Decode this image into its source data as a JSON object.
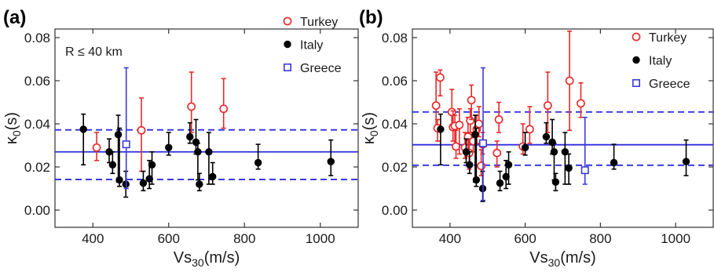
{
  "chart_data": [
    {
      "type": "scatter",
      "panel_label": "(a)",
      "annotation": "R ≤ 40 km",
      "xlabel_main": "Vs",
      "xlabel_sub": "30",
      "xlabel_unit": "(m/s)",
      "ylabel_main": "κ",
      "ylabel_sub": "0",
      "ylabel_unit": "(s)",
      "xlim": [
        300,
        1100
      ],
      "ylim": [
        -0.008,
        0.084
      ],
      "xticks": [
        400,
        600,
        800,
        1000
      ],
      "yticks": [
        "0.00",
        "0.02",
        "0.04",
        "0.06",
        "0.08"
      ],
      "ytick_values": [
        0.0,
        0.02,
        0.04,
        0.06,
        0.08
      ],
      "grid": false,
      "legend_position": "top-right",
      "mean_line": 0.027,
      "band": [
        0.0142,
        0.0372
      ],
      "series": [
        {
          "name": "Turkey",
          "color": "#e8292a",
          "marker": "open-circle",
          "points": [
            {
              "x": 410,
              "y": 0.029,
              "lo": 0.023,
              "hi": 0.036
            },
            {
              "x": 528,
              "y": 0.037,
              "lo": 0.018,
              "hi": 0.052
            },
            {
              "x": 660,
              "y": 0.048,
              "lo": 0.036,
              "hi": 0.064
            },
            {
              "x": 745,
              "y": 0.047,
              "lo": 0.038,
              "hi": 0.061
            }
          ]
        },
        {
          "name": "Italy",
          "color": "#000000",
          "marker": "filled-circle",
          "points": [
            {
              "x": 375,
              "y": 0.0375,
              "lo": 0.021,
              "hi": 0.0445
            },
            {
              "x": 443,
              "y": 0.027,
              "lo": 0.022,
              "hi": 0.033
            },
            {
              "x": 452,
              "y": 0.021,
              "lo": 0.017,
              "hi": 0.027
            },
            {
              "x": 467,
              "y": 0.035,
              "lo": 0.013,
              "hi": 0.044
            },
            {
              "x": 470,
              "y": 0.014,
              "lo": 0.011,
              "hi": 0.038
            },
            {
              "x": 487,
              "y": 0.012,
              "lo": 0.006,
              "hi": 0.018
            },
            {
              "x": 533,
              "y": 0.0125,
              "lo": 0.009,
              "hi": 0.018
            },
            {
              "x": 549,
              "y": 0.0145,
              "lo": 0.01,
              "hi": 0.023
            },
            {
              "x": 556,
              "y": 0.021,
              "lo": 0.012,
              "hi": 0.027
            },
            {
              "x": 600,
              "y": 0.029,
              "lo": 0.0255,
              "hi": 0.036
            },
            {
              "x": 656,
              "y": 0.034,
              "lo": 0.031,
              "hi": 0.0405
            },
            {
              "x": 672,
              "y": 0.0315,
              "lo": 0.026,
              "hi": 0.042
            },
            {
              "x": 677,
              "y": 0.027,
              "lo": 0.014,
              "hi": 0.031
            },
            {
              "x": 681,
              "y": 0.012,
              "lo": 0.009,
              "hi": 0.017
            },
            {
              "x": 706,
              "y": 0.027,
              "lo": 0.012,
              "hi": 0.036
            },
            {
              "x": 716,
              "y": 0.0155,
              "lo": 0.012,
              "hi": 0.022
            },
            {
              "x": 836,
              "y": 0.022,
              "lo": 0.019,
              "hi": 0.0305
            },
            {
              "x": 1028,
              "y": 0.0225,
              "lo": 0.016,
              "hi": 0.0325
            }
          ]
        },
        {
          "name": "Greece",
          "color": "#3b3bdb",
          "marker": "open-square",
          "points": [
            {
              "x": 488,
              "y": 0.0305,
              "lo": 0.01,
              "hi": 0.066
            }
          ]
        }
      ]
    },
    {
      "type": "scatter",
      "panel_label": "(b)",
      "xlabel_main": "Vs",
      "xlabel_sub": "30",
      "xlabel_unit": "(m/s)",
      "ylabel_main": "κ",
      "ylabel_sub": "0",
      "ylabel_unit": "(s)",
      "xlim": [
        300,
        1100
      ],
      "ylim": [
        -0.008,
        0.084
      ],
      "xticks": [
        400,
        600,
        800,
        1000
      ],
      "yticks": [
        "0.00",
        "0.02",
        "0.04",
        "0.06",
        "0.08"
      ],
      "ytick_values": [
        0.0,
        0.02,
        0.04,
        0.06,
        0.08
      ],
      "grid": false,
      "legend_position": "top-right",
      "mean_line": 0.0303,
      "band": [
        0.0208,
        0.0455
      ],
      "series": [
        {
          "name": "Turkey",
          "color": "#e8292a",
          "marker": "open-circle",
          "points": [
            {
              "x": 363,
              "y": 0.0485,
              "lo": 0.038,
              "hi": 0.064
            },
            {
              "x": 367,
              "y": 0.038,
              "lo": 0.032,
              "hi": 0.042
            },
            {
              "x": 374,
              "y": 0.0615,
              "lo": 0.053,
              "hi": 0.065
            },
            {
              "x": 405,
              "y": 0.0455,
              "lo": 0.039,
              "hi": 0.056
            },
            {
              "x": 408,
              "y": 0.0385,
              "lo": 0.032,
              "hi": 0.046
            },
            {
              "x": 413,
              "y": 0.039,
              "lo": 0.03,
              "hi": 0.044
            },
            {
              "x": 416,
              "y": 0.0295,
              "lo": 0.024,
              "hi": 0.037
            },
            {
              "x": 425,
              "y": 0.0395,
              "lo": 0.026,
              "hi": 0.047
            },
            {
              "x": 440,
              "y": 0.029,
              "lo": 0.024,
              "hi": 0.036
            },
            {
              "x": 448,
              "y": 0.034,
              "lo": 0.026,
              "hi": 0.043
            },
            {
              "x": 451,
              "y": 0.0265,
              "lo": 0.019,
              "hi": 0.033
            },
            {
              "x": 454,
              "y": 0.0415,
              "lo": 0.036,
              "hi": 0.047
            },
            {
              "x": 457,
              "y": 0.051,
              "lo": 0.042,
              "hi": 0.058
            },
            {
              "x": 462,
              "y": 0.032,
              "lo": 0.027,
              "hi": 0.036
            },
            {
              "x": 471,
              "y": 0.0375,
              "lo": 0.031,
              "hi": 0.044
            },
            {
              "x": 477,
              "y": 0.04,
              "lo": 0.034,
              "hi": 0.048
            },
            {
              "x": 483,
              "y": 0.0205,
              "lo": 0.016,
              "hi": 0.028
            },
            {
              "x": 487,
              "y": 0.0305,
              "lo": 0.026,
              "hi": 0.036
            },
            {
              "x": 525,
              "y": 0.0265,
              "lo": 0.02,
              "hi": 0.032
            },
            {
              "x": 530,
              "y": 0.042,
              "lo": 0.036,
              "hi": 0.05
            },
            {
              "x": 594,
              "y": 0.0295,
              "lo": 0.026,
              "hi": 0.04
            },
            {
              "x": 612,
              "y": 0.0375,
              "lo": 0.031,
              "hi": 0.048
            },
            {
              "x": 660,
              "y": 0.0485,
              "lo": 0.036,
              "hi": 0.064
            },
            {
              "x": 718,
              "y": 0.06,
              "lo": 0.037,
              "hi": 0.083
            },
            {
              "x": 748,
              "y": 0.0495,
              "lo": 0.043,
              "hi": 0.059
            }
          ]
        },
        {
          "name": "Italy",
          "color": "#000000",
          "marker": "filled-circle",
          "points": [
            {
              "x": 375,
              "y": 0.0375,
              "lo": 0.021,
              "hi": 0.0445
            },
            {
              "x": 443,
              "y": 0.027,
              "lo": 0.022,
              "hi": 0.033
            },
            {
              "x": 452,
              "y": 0.021,
              "lo": 0.017,
              "hi": 0.027
            },
            {
              "x": 467,
              "y": 0.035,
              "lo": 0.013,
              "hi": 0.044
            },
            {
              "x": 470,
              "y": 0.014,
              "lo": 0.011,
              "hi": 0.038
            },
            {
              "x": 487,
              "y": 0.01,
              "lo": 0.004,
              "hi": 0.018
            },
            {
              "x": 533,
              "y": 0.0125,
              "lo": 0.009,
              "hi": 0.018
            },
            {
              "x": 549,
              "y": 0.0155,
              "lo": 0.01,
              "hi": 0.023
            },
            {
              "x": 556,
              "y": 0.021,
              "lo": 0.012,
              "hi": 0.027
            },
            {
              "x": 600,
              "y": 0.029,
              "lo": 0.0255,
              "hi": 0.036
            },
            {
              "x": 656,
              "y": 0.034,
              "lo": 0.031,
              "hi": 0.0405
            },
            {
              "x": 672,
              "y": 0.0315,
              "lo": 0.026,
              "hi": 0.042
            },
            {
              "x": 677,
              "y": 0.027,
              "lo": 0.014,
              "hi": 0.031
            },
            {
              "x": 681,
              "y": 0.013,
              "lo": 0.009,
              "hi": 0.017
            },
            {
              "x": 706,
              "y": 0.027,
              "lo": 0.012,
              "hi": 0.036
            },
            {
              "x": 716,
              "y": 0.0195,
              "lo": 0.012,
              "hi": 0.026
            },
            {
              "x": 836,
              "y": 0.022,
              "lo": 0.019,
              "hi": 0.0305
            },
            {
              "x": 1028,
              "y": 0.0225,
              "lo": 0.016,
              "hi": 0.0325
            }
          ]
        },
        {
          "name": "Greece",
          "color": "#3b3bdb",
          "marker": "open-square",
          "points": [
            {
              "x": 488,
              "y": 0.031,
              "lo": 0.0045,
              "hi": 0.066
            },
            {
              "x": 759,
              "y": 0.0185,
              "lo": 0.012,
              "hi": 0.043
            }
          ]
        }
      ]
    }
  ]
}
